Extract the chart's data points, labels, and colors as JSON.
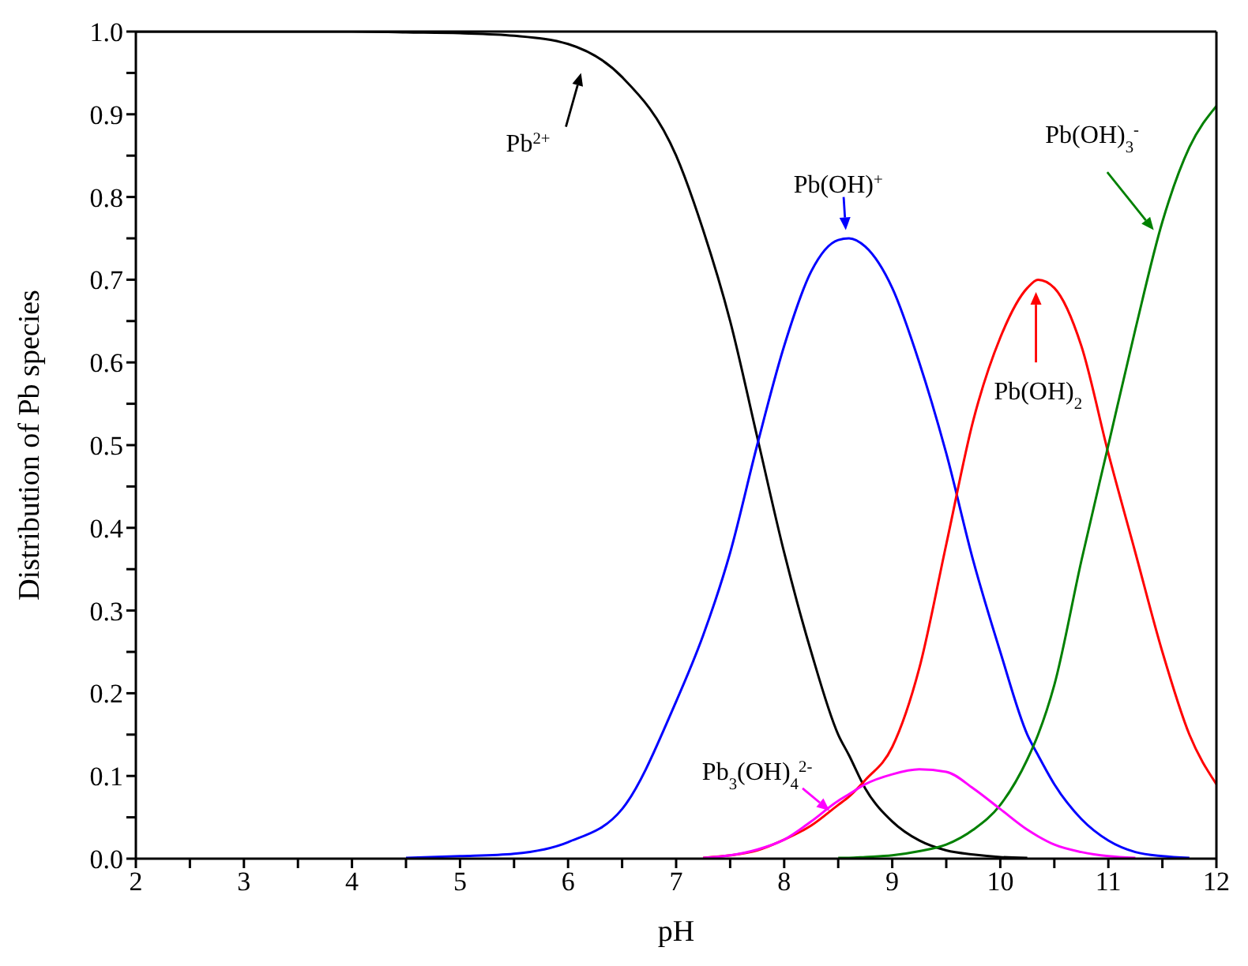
{
  "chart_data": {
    "type": "line",
    "xlabel": "pH",
    "ylabel": "Distribution of Pb species",
    "x": [
      2,
      3,
      4,
      4.5,
      5,
      5.5,
      6,
      6.5,
      7,
      7.25,
      7.5,
      7.75,
      8,
      8.25,
      8.5,
      8.6,
      8.75,
      9,
      9.25,
      9.5,
      9.75,
      10,
      10.25,
      10.35,
      10.5,
      10.75,
      11,
      11.25,
      11.5,
      11.75,
      12
    ],
    "series": [
      {
        "name": "Pb$^{2+}$",
        "color": "#000000",
        "values": [
          1,
          1,
          1,
          0.999,
          0.998,
          0.995,
          0.985,
          0.945,
          0.85,
          0.76,
          0.65,
          0.51,
          0.37,
          0.25,
          0.15,
          0.125,
          0.085,
          0.045,
          0.022,
          0.01,
          0.005,
          0.002,
          0.001,
          null,
          null,
          null,
          null,
          null,
          null,
          null,
          null
        ]
      },
      {
        "name": "Pb(OH)$^{+}$",
        "color": "#0000ff",
        "values": [
          null,
          null,
          null,
          0.001,
          0.003,
          0.006,
          0.02,
          0.06,
          0.19,
          0.27,
          0.37,
          0.5,
          0.62,
          0.71,
          0.748,
          0.75,
          0.74,
          0.69,
          0.6,
          0.49,
          0.36,
          0.25,
          0.15,
          0.125,
          0.09,
          0.048,
          0.022,
          0.008,
          0.003,
          0.001,
          null
        ]
      },
      {
        "name": "Pb(OH)$_{2}$",
        "color": "#ff0000",
        "values": [
          null,
          null,
          null,
          null,
          null,
          null,
          null,
          null,
          null,
          0.001,
          0.004,
          0.01,
          0.023,
          0.04,
          0.065,
          0.075,
          0.095,
          0.135,
          0.23,
          0.38,
          0.53,
          0.63,
          0.69,
          0.7,
          0.69,
          0.62,
          0.49,
          0.37,
          0.25,
          0.15,
          0.09
        ]
      },
      {
        "name": "Pb(OH)$_{3}$$^{-}$",
        "color": "#008000",
        "values": [
          null,
          null,
          null,
          null,
          null,
          null,
          null,
          null,
          null,
          null,
          null,
          null,
          null,
          null,
          0.001,
          0.001,
          0.002,
          0.004,
          0.009,
          0.017,
          0.035,
          0.065,
          0.12,
          0.15,
          0.21,
          0.36,
          0.5,
          0.64,
          0.77,
          0.86,
          0.91
        ]
      },
      {
        "name": "Pb$_{3}$(OH)$_{4}$$^{2-}$",
        "color": "#ff00ff",
        "values": [
          null,
          null,
          null,
          null,
          null,
          null,
          null,
          null,
          null,
          0.001,
          0.004,
          0.011,
          0.023,
          0.045,
          0.07,
          0.078,
          0.09,
          0.102,
          0.108,
          0.105,
          0.085,
          0.06,
          0.035,
          0.027,
          0.017,
          0.008,
          0.003,
          0.001,
          null,
          null,
          null
        ]
      }
    ],
    "xlim": [
      2,
      12
    ],
    "xticks": [
      2,
      {
        "value": 2.5,
        "label": null
      },
      3,
      {
        "value": 3.5,
        "label": null
      },
      4,
      {
        "value": 4.5,
        "label": null
      },
      5,
      {
        "value": 5.5,
        "label": null
      },
      6,
      {
        "value": 6.5,
        "label": null
      },
      7,
      {
        "value": 7.5,
        "label": null
      },
      8,
      {
        "value": 8.5,
        "label": null
      },
      9,
      {
        "value": 9.5,
        "label": null
      },
      10,
      {
        "value": 10.5,
        "label": null
      },
      11,
      {
        "value": 11.5,
        "label": null
      },
      12
    ],
    "ylim": [
      0,
      1
    ],
    "yticks": [
      {
        "value": 0,
        "label": "0.0"
      },
      {
        "value": 0.05,
        "label": null
      },
      0.1,
      {
        "value": 0.15,
        "label": null
      },
      0.2,
      {
        "value": 0.25,
        "label": null
      },
      0.3,
      {
        "value": 0.35,
        "label": null
      },
      0.4,
      {
        "value": 0.45,
        "label": null
      },
      0.5,
      {
        "value": 0.55,
        "label": null
      },
      0.6,
      {
        "value": 0.65,
        "label": null
      },
      0.7,
      {
        "value": 0.75,
        "label": null
      },
      0.8,
      {
        "value": 0.85,
        "label": null
      },
      0.9,
      {
        "value": 0.95,
        "label": null
      },
      {
        "value": 1,
        "label": "1.0"
      }
    ],
    "grid": false,
    "legend": "top",
    "marker": "none",
    "line_style": "solid"
  }
}
